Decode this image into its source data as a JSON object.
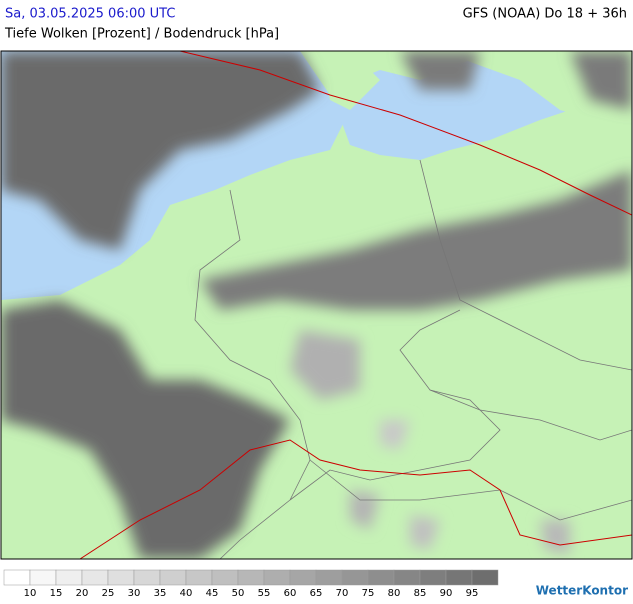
{
  "header": {
    "timestamp": "Sa, 03.05.2025 06:00 UTC",
    "model": "GFS (NOAA) Do 18 + 36h",
    "subtitle": "Tiefe Wolken [Prozent] / Bodendruck [hPa]"
  },
  "legend": {
    "ticks": [
      10,
      15,
      20,
      25,
      30,
      35,
      40,
      45,
      50,
      55,
      60,
      65,
      70,
      75,
      80,
      85,
      90,
      95
    ]
  },
  "brand": "WetterKontor"
}
